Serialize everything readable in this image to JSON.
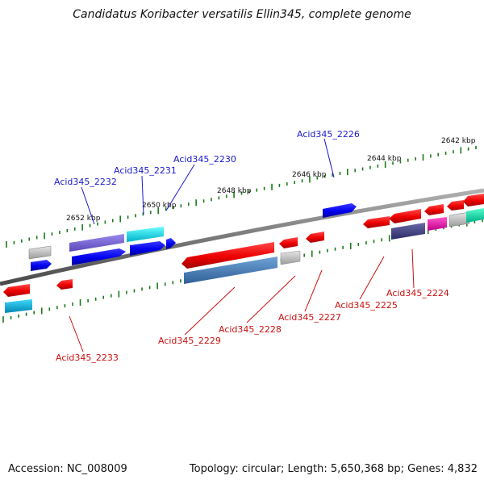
{
  "title": "Candidatus Koribacter versatilis Ellin345, complete genome",
  "footer": {
    "accession": "Accession: NC_008009",
    "summary": "Topology: circular; Length: 5,650,368 bp; Genes: 4,832"
  },
  "kbp_labels": [
    "2652 kbp",
    "2650 kbp",
    "2648 kbp",
    "2646 kbp",
    "2644 kbp",
    "2642 kbp"
  ],
  "genes_top": [
    "Acid345_2232",
    "Acid345_2231",
    "Acid345_2230",
    "Acid345_2226"
  ],
  "genes_bottom": [
    "Acid345_2233",
    "Acid345_2229",
    "Acid345_2228",
    "Acid345_2227",
    "Acid345_2225",
    "Acid345_2224"
  ],
  "colors": {
    "backbone": "#808080",
    "tick": "#1a7a1a",
    "forward_label": "#1a1acc",
    "reverse_label": "#cc1111"
  }
}
